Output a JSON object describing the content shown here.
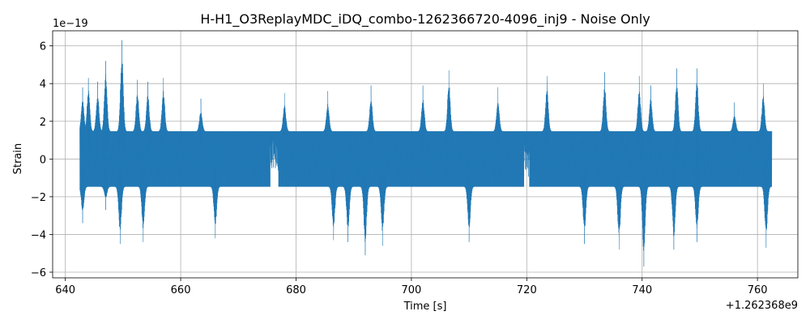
{
  "chart_data": {
    "type": "line",
    "title": "H-H1_O3ReplayMDC_iDQ_combo-1262366720-4096_inj9 - Noise Only",
    "xlabel": "Time [s]",
    "ylabel": "Strain",
    "x_offset_label": "+1.262368e9",
    "y_scale_label": "1e−19",
    "xlim": [
      637.8,
      767.0
    ],
    "ylim": [
      -6.3,
      6.8
    ],
    "x_ticks": [
      640,
      660,
      680,
      700,
      720,
      740,
      760
    ],
    "x_tick_labels": [
      "640",
      "660",
      "680",
      "700",
      "720",
      "740",
      "760"
    ],
    "y_ticks": [
      -6,
      -4,
      -2,
      0,
      2,
      4,
      6
    ],
    "y_tick_labels": [
      "−6",
      "−4",
      "−2",
      "0",
      "2",
      "4",
      "6"
    ],
    "grid": true,
    "series": [
      {
        "color": "#1f77b4",
        "x_start": 642.5,
        "x_end": 762.5,
        "peaks": [
          {
            "x": 642.6,
            "y": 1.9
          },
          {
            "x": 643.0,
            "y": 3.8
          },
          {
            "x": 644.0,
            "y": 4.3
          },
          {
            "x": 645.6,
            "y": 4.1
          },
          {
            "x": 647.0,
            "y": 5.2
          },
          {
            "x": 649.8,
            "y": 6.3
          },
          {
            "x": 652.5,
            "y": 4.2
          },
          {
            "x": 654.3,
            "y": 4.1
          },
          {
            "x": 657.0,
            "y": 4.3
          },
          {
            "x": 663.5,
            "y": 3.2
          },
          {
            "x": 678.0,
            "y": 3.5
          },
          {
            "x": 685.5,
            "y": 3.6
          },
          {
            "x": 693.0,
            "y": 3.9
          },
          {
            "x": 702.0,
            "y": 3.9
          },
          {
            "x": 706.5,
            "y": 4.7
          },
          {
            "x": 715.0,
            "y": 3.8
          },
          {
            "x": 723.5,
            "y": 4.4
          },
          {
            "x": 733.5,
            "y": 4.6
          },
          {
            "x": 739.5,
            "y": 4.4
          },
          {
            "x": 741.5,
            "y": 3.9
          },
          {
            "x": 746.0,
            "y": 4.8
          },
          {
            "x": 749.5,
            "y": 4.8
          },
          {
            "x": 756.0,
            "y": 3.0
          },
          {
            "x": 761.0,
            "y": 4.0
          }
        ],
        "troughs": [
          {
            "x": 643.0,
            "y": -3.4
          },
          {
            "x": 647.0,
            "y": -2.7
          },
          {
            "x": 649.5,
            "y": -4.5
          },
          {
            "x": 653.5,
            "y": -4.4
          },
          {
            "x": 666.0,
            "y": -4.2
          },
          {
            "x": 686.5,
            "y": -4.3
          },
          {
            "x": 689.0,
            "y": -4.4
          },
          {
            "x": 692.0,
            "y": -5.1
          },
          {
            "x": 695.0,
            "y": -4.6
          },
          {
            "x": 710.0,
            "y": -4.4
          },
          {
            "x": 730.0,
            "y": -4.5
          },
          {
            "x": 736.0,
            "y": -4.8
          },
          {
            "x": 740.3,
            "y": -5.7
          },
          {
            "x": 745.5,
            "y": -4.8
          },
          {
            "x": 749.5,
            "y": -4.4
          },
          {
            "x": 761.5,
            "y": -4.7
          }
        ],
        "typical_envelope": 2.1
      }
    ]
  }
}
